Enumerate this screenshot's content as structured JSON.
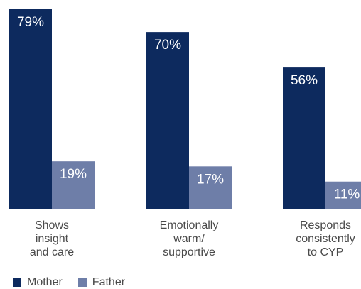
{
  "chart_data": {
    "type": "bar",
    "categories": [
      [
        "Shows",
        "insight",
        "and care"
      ],
      [
        "Emotionally",
        "warm/",
        "supportive"
      ],
      [
        "Responds",
        "consistently",
        "to CYP"
      ]
    ],
    "series": [
      {
        "name": "Mother",
        "values": [
          79,
          70,
          56
        ],
        "labels": [
          "79%",
          "70%",
          "56%"
        ],
        "color": "#0d2a5e"
      },
      {
        "name": "Father",
        "values": [
          19,
          17,
          11
        ],
        "labels": [
          "19%",
          "17%",
          "11%"
        ],
        "color": "#6e7ea8"
      }
    ],
    "ylim": [
      0,
      79
    ],
    "grid": false,
    "legend_position": "bottom-left"
  }
}
